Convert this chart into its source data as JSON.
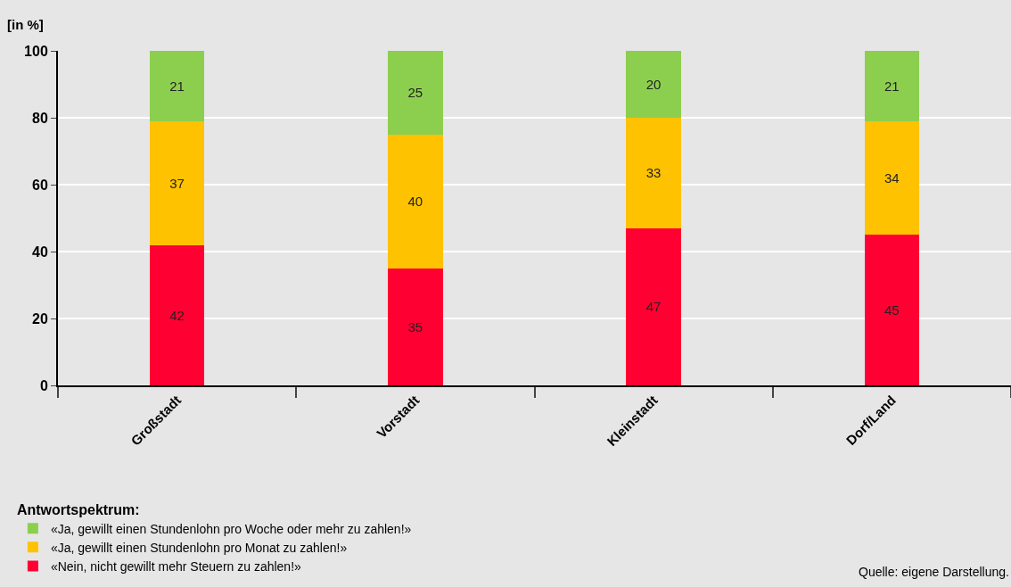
{
  "chart_data": {
    "type": "bar",
    "stacked": true,
    "ylabel": "[in %]",
    "legend_title": "Antwortspektrum:",
    "categories": [
      "Großstadt",
      "Vorstadt",
      "Kleinstadt",
      "Dorf/Land"
    ],
    "series": [
      {
        "name": "«Nein, nicht gewillt mehr Steuern zu zahlen!»",
        "color": "#ff0033",
        "values": [
          42,
          35,
          47,
          45
        ]
      },
      {
        "name": "«Ja, gewillt einen Stundenlohn pro Monat zu zahlen!»",
        "color": "#ffc200",
        "values": [
          37,
          40,
          33,
          34
        ]
      },
      {
        "name": "«Ja, gewillt einen Stundenlohn pro Woche oder mehr zu zahlen!»",
        "color": "#8ccf4e",
        "values": [
          21,
          25,
          20,
          21
        ]
      }
    ],
    "ylim": [
      0,
      100
    ],
    "yticks": [
      0,
      20,
      40,
      60,
      80,
      100
    ],
    "grid": "y",
    "data_labels": true,
    "legend": "bottom left",
    "annotations": [
      "Quelle: eigene Darstellung."
    ]
  }
}
